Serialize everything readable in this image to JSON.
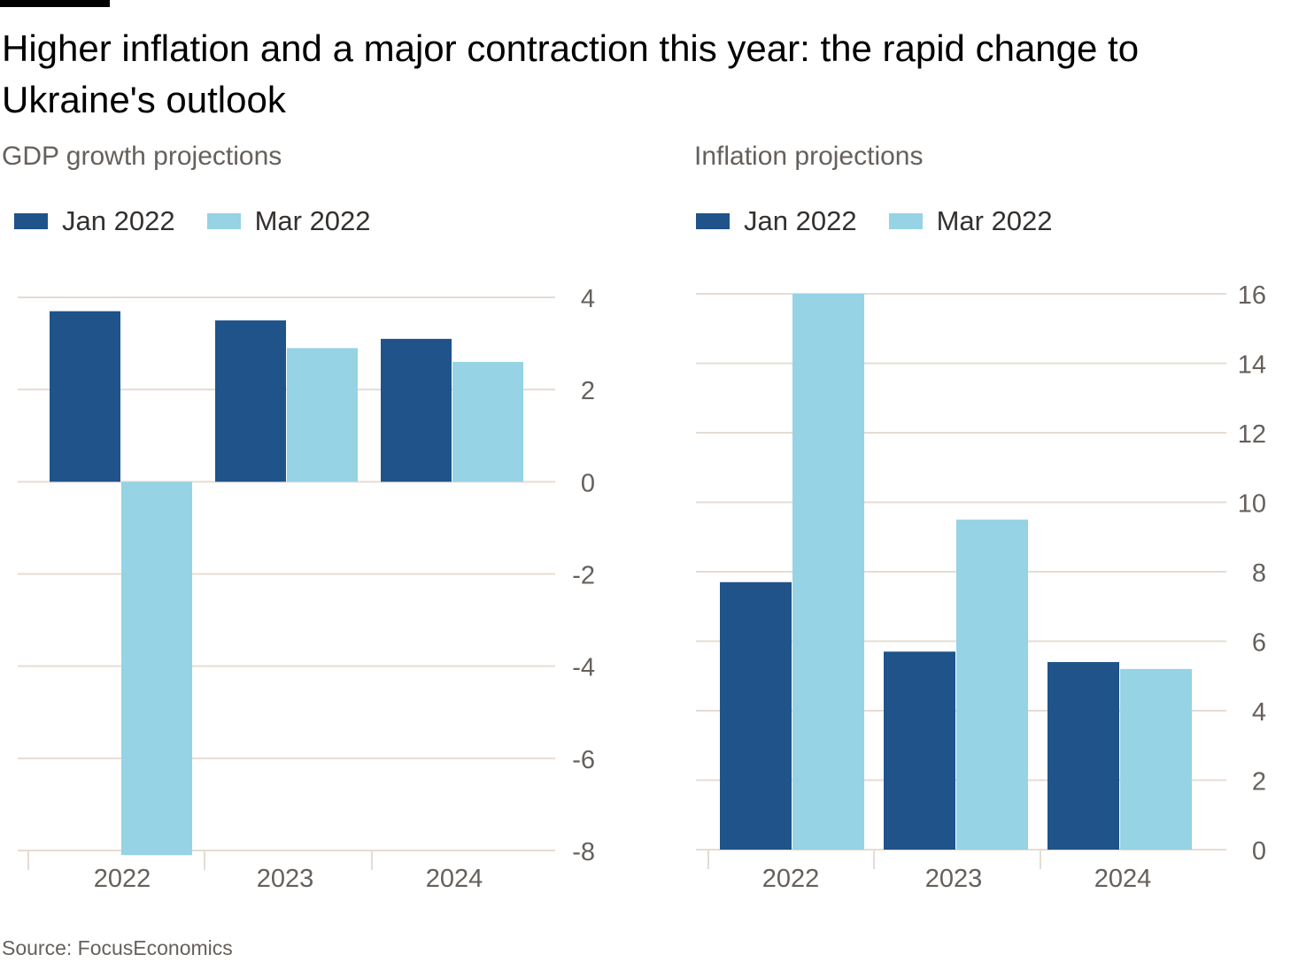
{
  "title": "Higher inflation and a major contraction this year: the rapid change to Ukraine's outlook",
  "source": "Source: FocusEconomics",
  "colors": {
    "jan": "#1f538a",
    "mar": "#95d3e5",
    "grid": "#e6dcd3",
    "axis_text": "#66605c"
  },
  "chart_data": [
    {
      "type": "bar",
      "title": "GDP growth projections",
      "categories": [
        "2022",
        "2023",
        "2024"
      ],
      "series": [
        {
          "name": "Jan 2022",
          "values": [
            3.7,
            3.5,
            3.1
          ]
        },
        {
          "name": "Mar 2022",
          "values": [
            -8.1,
            2.9,
            2.6
          ]
        }
      ],
      "ylim": [
        -8,
        4
      ],
      "yticks": [
        4,
        2,
        0,
        -2,
        -4,
        -6,
        -8
      ],
      "ytick_labels": [
        "4",
        "2",
        "0",
        "-2",
        "-4",
        "-6",
        "-8"
      ],
      "xlabel": "",
      "ylabel": "",
      "grid": true,
      "legend": "top-left"
    },
    {
      "type": "bar",
      "title": "Inflation projections",
      "categories": [
        "2022",
        "2023",
        "2024"
      ],
      "series": [
        {
          "name": "Jan 2022",
          "values": [
            7.7,
            5.7,
            5.4
          ]
        },
        {
          "name": "Mar 2022",
          "values": [
            16.0,
            9.5,
            5.2
          ]
        }
      ],
      "ylim": [
        0,
        16
      ],
      "yticks": [
        16,
        14,
        12,
        10,
        8,
        6,
        4,
        2,
        0
      ],
      "ytick_labels": [
        "16",
        "14",
        "12",
        "10",
        "8",
        "6",
        "4",
        "2",
        "0"
      ],
      "xlabel": "",
      "ylabel": "",
      "grid": true,
      "legend": "top-left"
    }
  ]
}
